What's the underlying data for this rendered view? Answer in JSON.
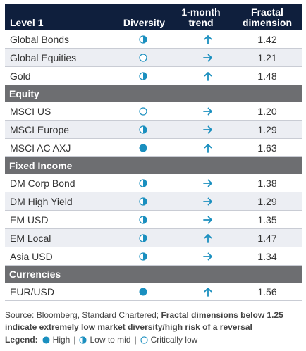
{
  "header": {
    "col_name": "Level 1",
    "col_diversity": "Diversity",
    "col_trend_line1": "1-month",
    "col_trend_line2": "trend",
    "col_fd_line1": "Fractal",
    "col_fd_line2": "dimension"
  },
  "colors": {
    "header_bg": "#0f1f3d",
    "section_bg": "#6d6e71",
    "accent": "#1a8fbf",
    "row_alt": "#eceef3"
  },
  "sections": [
    {
      "title": "",
      "rows": [
        {
          "name": "Global Bonds",
          "diversity": "low-to-mid",
          "trend": "up",
          "fd": "1.42"
        },
        {
          "name": "Global Equities",
          "diversity": "critically-low",
          "trend": "right",
          "fd": "1.21"
        },
        {
          "name": "Gold",
          "diversity": "low-to-mid",
          "trend": "up",
          "fd": "1.48"
        }
      ]
    },
    {
      "title": "Equity",
      "rows": [
        {
          "name": "MSCI US",
          "diversity": "critically-low",
          "trend": "right",
          "fd": "1.20"
        },
        {
          "name": "MSCI Europe",
          "diversity": "low-to-mid",
          "trend": "right",
          "fd": "1.29"
        },
        {
          "name": "MSCI AC AXJ",
          "diversity": "high",
          "trend": "up",
          "fd": "1.63"
        }
      ]
    },
    {
      "title": "Fixed Income",
      "rows": [
        {
          "name": "DM Corp Bond",
          "diversity": "low-to-mid",
          "trend": "right",
          "fd": "1.38"
        },
        {
          "name": "DM High Yield",
          "diversity": "low-to-mid",
          "trend": "right",
          "fd": "1.29"
        },
        {
          "name": "EM USD",
          "diversity": "low-to-mid",
          "trend": "right",
          "fd": "1.35"
        },
        {
          "name": "EM Local",
          "diversity": "low-to-mid",
          "trend": "up",
          "fd": "1.47"
        },
        {
          "name": "Asia USD",
          "diversity": "low-to-mid",
          "trend": "right",
          "fd": "1.34"
        }
      ]
    },
    {
      "title": "Currencies",
      "rows": [
        {
          "name": "EUR/USD",
          "diversity": "high",
          "trend": "up",
          "fd": "1.56"
        }
      ]
    }
  ],
  "source": {
    "plain": "Source: Bloomberg, Standard Chartered; ",
    "bold": "Fractal dimensions below 1.25 indicate extremely low market diversity/high risk of a reversal"
  },
  "legend": {
    "label": "Legend:",
    "high": "High",
    "low_to_mid": "Low to mid",
    "critically_low": "Critically low",
    "separator": "|"
  }
}
